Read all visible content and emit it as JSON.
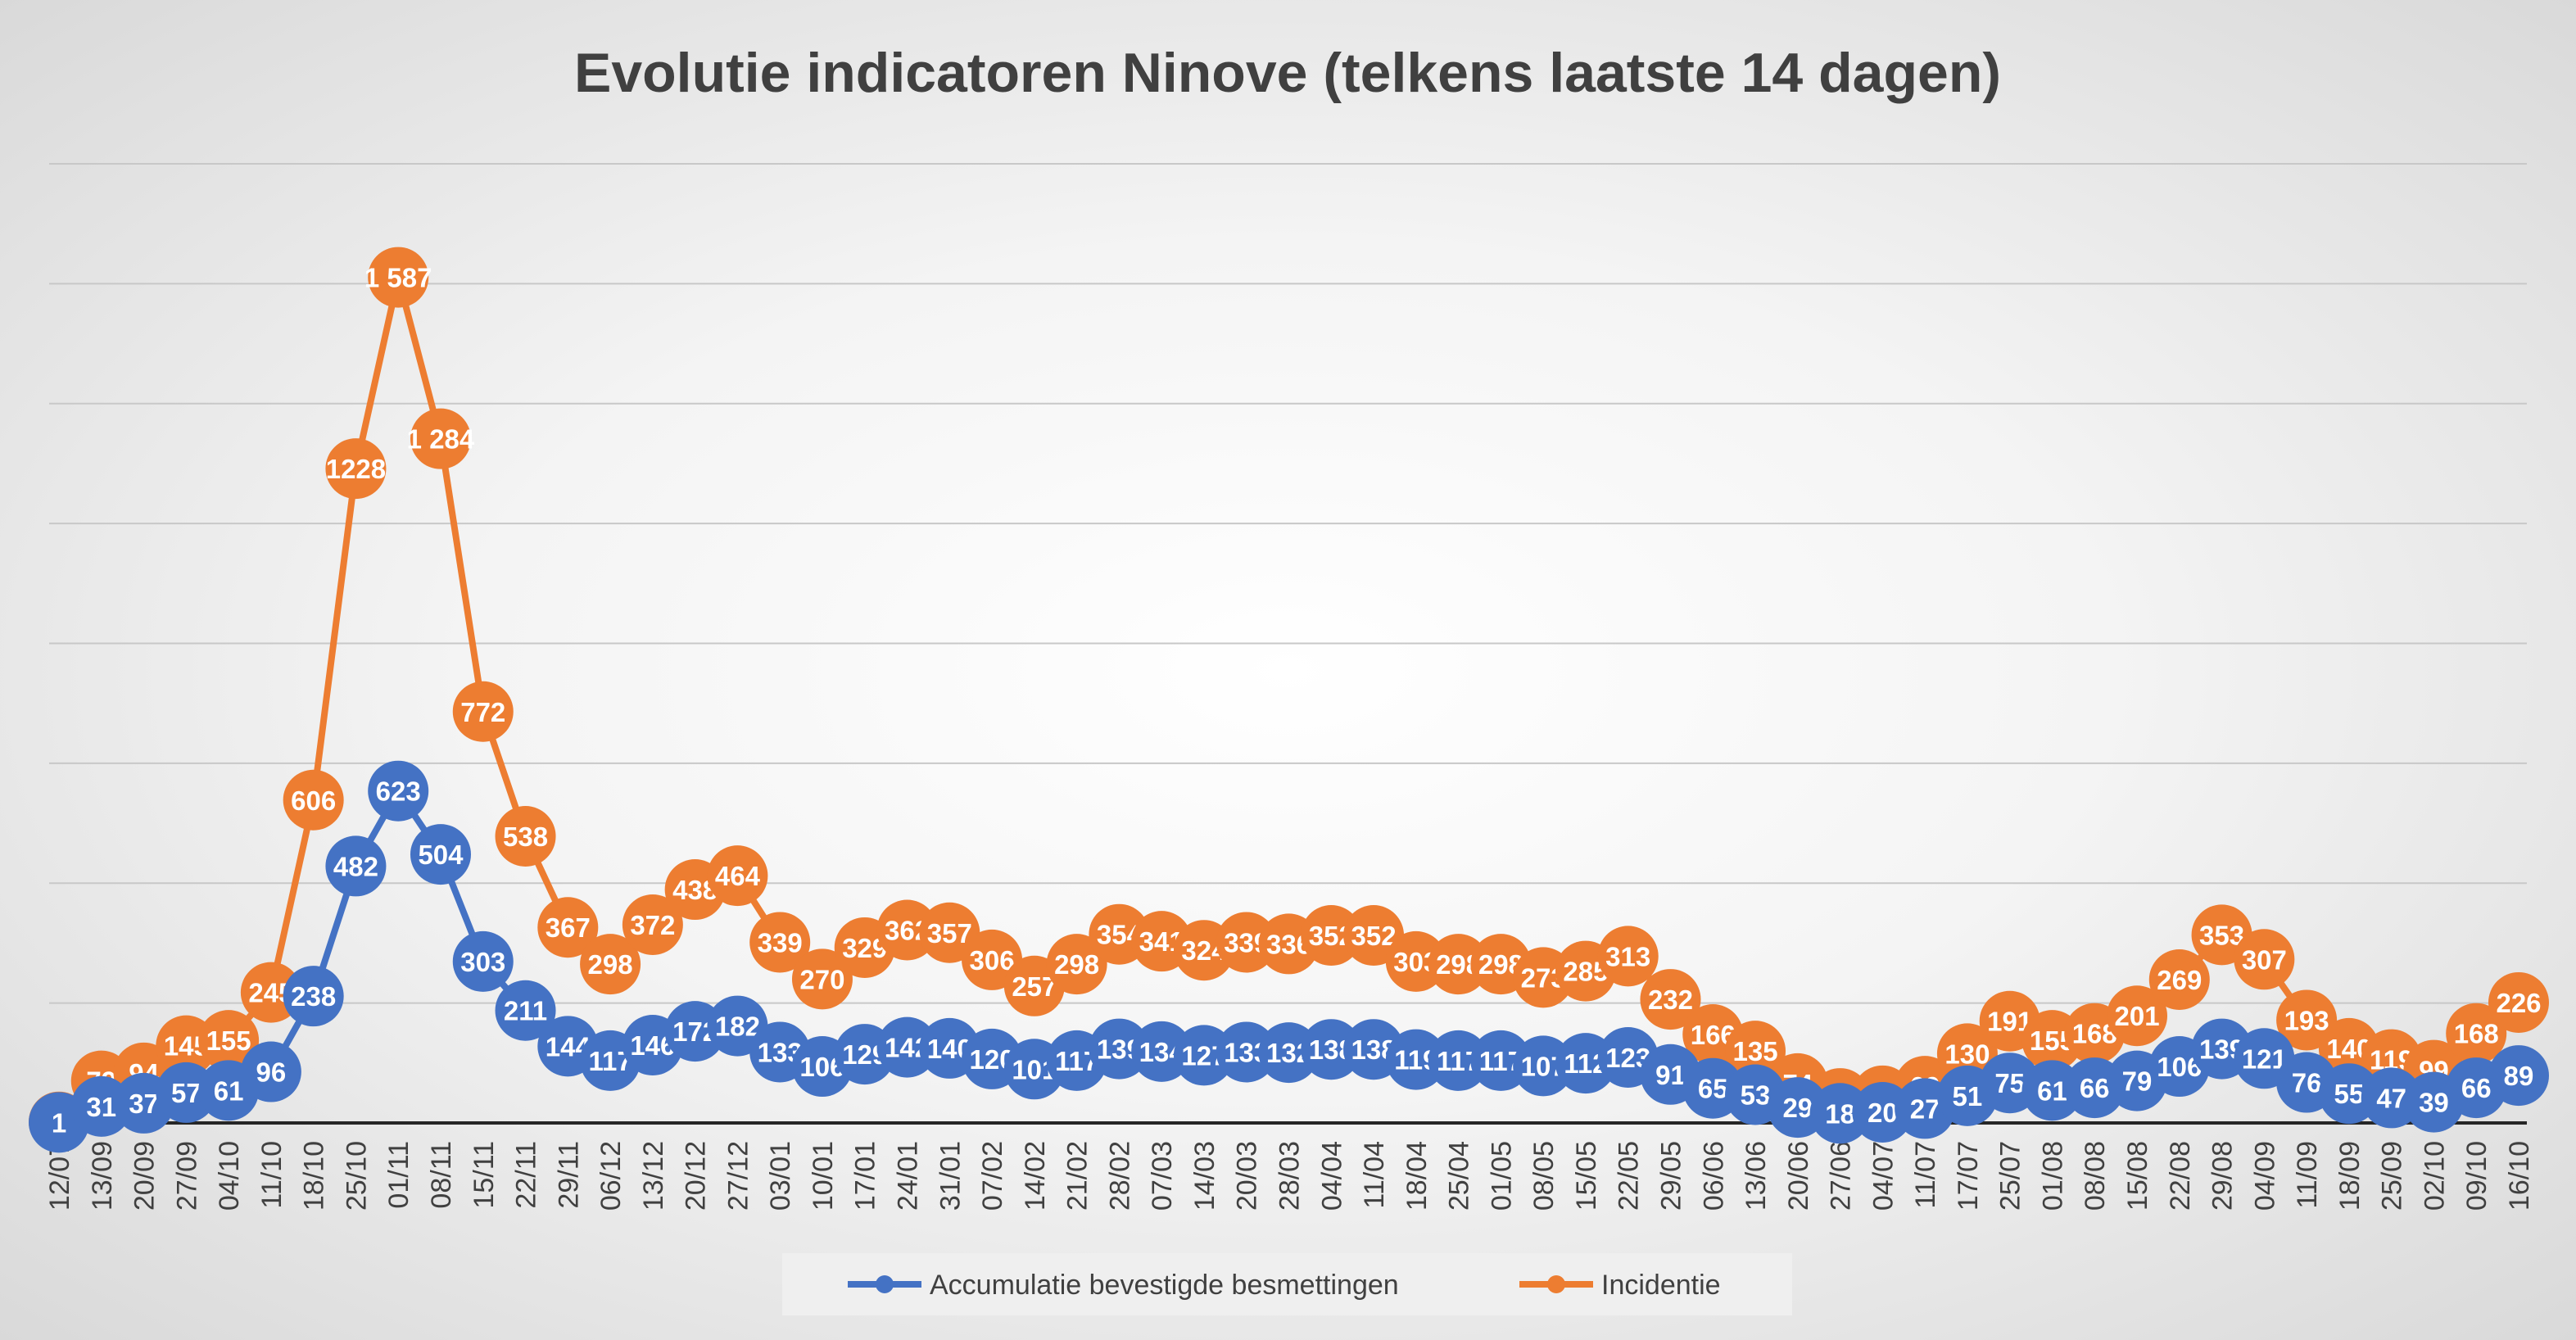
{
  "chart_data": {
    "type": "line",
    "title": "Evolutie indicatoren Ninove (telkens laatste 14 dagen)",
    "xlabel": "",
    "ylabel": "",
    "categories": [
      "12/07",
      "13/09",
      "20/09",
      "27/09",
      "04/10",
      "11/10",
      "18/10",
      "25/10",
      "01/11",
      "08/11",
      "15/11",
      "22/11",
      "29/11",
      "06/12",
      "13/12",
      "20/12",
      "27/12",
      "03/01",
      "10/01",
      "17/01",
      "24/01",
      "31/01",
      "07/02",
      "14/02",
      "21/02",
      "28/02",
      "07/03",
      "14/03",
      "20/03",
      "28/03",
      "04/04",
      "11/04",
      "18/04",
      "25/04",
      "01/05",
      "08/05",
      "15/05",
      "22/05",
      "29/05",
      "06/06",
      "13/06",
      "20/06",
      "27/06",
      "04/07",
      "11/07",
      "17/07",
      "25/07",
      "01/08",
      "08/08",
      "15/08",
      "22/08",
      "29/08",
      "04/09",
      "11/09",
      "18/09",
      "25/09",
      "02/10",
      "09/10",
      "16/10"
    ],
    "series": [
      {
        "name": "Accumulatie bevestigde besmettingen",
        "color": "#4472C4",
        "values": [
          1,
          31,
          37,
          57,
          61,
          96,
          238,
          482,
          623,
          504,
          303,
          211,
          144,
          117,
          146,
          172,
          182,
          133,
          106,
          129,
          142,
          140,
          120,
          101,
          117,
          139,
          134,
          127,
          133,
          132,
          138,
          138,
          119,
          117,
          117,
          107,
          112,
          123,
          91,
          65,
          53,
          29,
          18,
          20,
          27,
          51,
          75,
          61,
          66,
          79,
          106,
          139,
          121,
          76,
          55,
          47,
          39,
          66,
          89
        ],
        "labels": [
          "1",
          "31",
          "37",
          "57",
          "61",
          "96",
          "238",
          "482",
          "623",
          "504",
          "303",
          "211",
          "144",
          "117",
          "146",
          "172",
          "182",
          "133",
          "106",
          "129",
          "142",
          "140",
          "120",
          "101",
          "117",
          "139",
          "134",
          "127",
          "133",
          "132",
          "138",
          "138",
          "119",
          "117",
          "117",
          "107",
          "112",
          "123",
          "91",
          "65",
          "53",
          "29",
          "18",
          "20",
          "27",
          "51",
          "75",
          "61",
          "66",
          "79",
          "106",
          "139",
          "121",
          "76",
          "55",
          "47",
          "39",
          "66",
          "89"
        ]
      },
      {
        "name": "Incidentie",
        "color": "#ED7D31",
        "values": [
          2,
          79,
          94,
          145,
          155,
          245,
          606,
          1228,
          1587,
          1284,
          772,
          538,
          367,
          298,
          372,
          438,
          464,
          339,
          270,
          329,
          362,
          357,
          306,
          257,
          298,
          354,
          341,
          324,
          339,
          336,
          352,
          352,
          303,
          298,
          298,
          273,
          285,
          313,
          232,
          166,
          135,
          74,
          46,
          51,
          69,
          130,
          191,
          155,
          168,
          201,
          269,
          353,
          307,
          193,
          140,
          119,
          99,
          168,
          226
        ],
        "labels": [
          "2",
          "79",
          "94",
          "145",
          "155",
          "245",
          "606",
          "1228",
          "1 587",
          "1 284",
          "772",
          "538",
          "367",
          "298",
          "372",
          "438",
          "464",
          "339",
          "270",
          "329",
          "362",
          "357",
          "306",
          "257",
          "298",
          "354",
          "341",
          "324",
          "339",
          "336",
          "352",
          "352",
          "303",
          "298",
          "298",
          "273",
          "285",
          "313",
          "232",
          "166",
          "135",
          "74",
          "46",
          "51",
          "69",
          "130",
          "191",
          "155",
          "168",
          "201",
          "269",
          "353",
          "307",
          "193",
          "140",
          "119",
          "99",
          "168",
          "226"
        ]
      }
    ],
    "ylim": [
      0,
      1800
    ],
    "grid": true,
    "legend": "bottom"
  }
}
